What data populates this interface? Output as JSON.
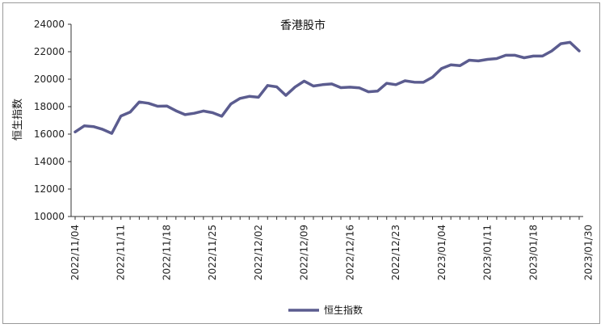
{
  "chart_data": {
    "type": "line",
    "title": "香港股市",
    "ylabel": "恒生指数",
    "xlabel": "",
    "ylim": [
      10000,
      24000
    ],
    "yticks": [
      10000,
      12000,
      14000,
      16000,
      18000,
      20000,
      22000,
      24000
    ],
    "x_tick_labels": [
      "2022/11/04",
      "2022/11/11",
      "2022/11/18",
      "2022/11/25",
      "2022/12/02",
      "2022/12/09",
      "2022/12/16",
      "2022/12/23",
      "2023/01/04",
      "2023/01/11",
      "2023/01/18",
      "2023/01/30"
    ],
    "x_tick_indices": [
      0,
      5,
      10,
      15,
      20,
      25,
      30,
      35,
      40,
      45,
      50,
      56
    ],
    "legend_position": "bottom",
    "series": [
      {
        "name": "恒生指数",
        "color": "#5b5c8f",
        "values": [
          16160,
          16600,
          16550,
          16350,
          16050,
          17320,
          17600,
          18340,
          18250,
          18030,
          18050,
          17700,
          17420,
          17520,
          17680,
          17560,
          17300,
          18200,
          18600,
          18750,
          18680,
          19540,
          19440,
          18820,
          19430,
          19860,
          19500,
          19600,
          19650,
          19380,
          19420,
          19370,
          19080,
          19130,
          19700,
          19600,
          19880,
          19780,
          19770,
          20150,
          20780,
          21050,
          20980,
          21380,
          21330,
          21440,
          21500,
          21740,
          21740,
          21560,
          21680,
          21680,
          22050,
          22580,
          22680,
          22060
        ]
      }
    ]
  }
}
